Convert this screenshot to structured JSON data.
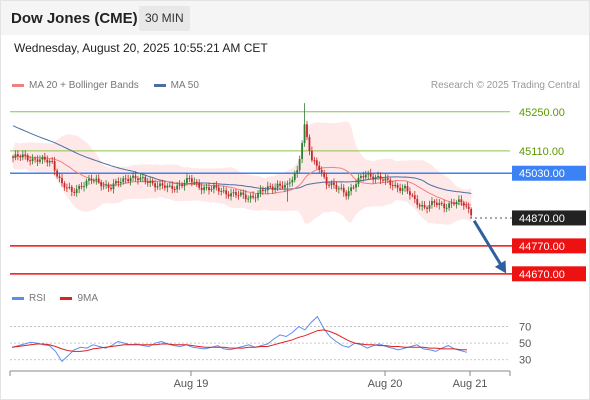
{
  "header": {
    "title": "Dow Jones (CME)",
    "interval": "30 MIN",
    "timestamp": "Wednesday, August 20, 2025 10:55:21 AM CET"
  },
  "legend": {
    "ma20_label": "MA 20 + Bollinger Bands",
    "ma50_label": "MA 50",
    "credit": "Research © 2025 Trading Central",
    "rsi_label": "RSI",
    "rsi_ma_label": "9MA"
  },
  "colors": {
    "ma20": "#f08080",
    "ma50": "#4a6fa5",
    "resistance": "#8bc34a",
    "pivot": "#3b82f6",
    "support": "#ee1111",
    "candle_up": "#2e7d32",
    "candle_down": "#c62828",
    "rsi": "#5b8def",
    "rsi_ma": "#dd2222",
    "arrow": "#2e5f9e"
  },
  "chart_data": {
    "type": "candlestick",
    "ylim": [
      44630,
      45310
    ],
    "levels": [
      {
        "value": 45250,
        "label": "45250.00",
        "kind": "resistance"
      },
      {
        "value": 45110,
        "label": "45110.00",
        "kind": "resistance"
      },
      {
        "value": 45030,
        "label": "45030.00",
        "kind": "pivot"
      },
      {
        "value": 44870,
        "label": "44870.00",
        "kind": "last"
      },
      {
        "value": 44770,
        "label": "44770.00",
        "kind": "support"
      },
      {
        "value": 44670,
        "label": "44670.00",
        "kind": "support"
      }
    ],
    "x_ticks": [
      "Aug 19",
      "Aug 20",
      "Aug 21"
    ],
    "price_path": [
      [
        0,
        45085
      ],
      [
        4,
        45090
      ],
      [
        8,
        45082
      ],
      [
        12,
        45075
      ],
      [
        16,
        45070
      ],
      [
        20,
        44990
      ],
      [
        24,
        44960
      ],
      [
        28,
        44990
      ],
      [
        32,
        45005
      ],
      [
        36,
        44995
      ],
      [
        40,
        44980
      ],
      [
        44,
        45000
      ],
      [
        48,
        45020
      ],
      [
        52,
        45005
      ],
      [
        56,
        45000
      ],
      [
        60,
        44985
      ],
      [
        64,
        44975
      ],
      [
        68,
        44990
      ],
      [
        72,
        45005
      ],
      [
        76,
        44985
      ],
      [
        80,
        44975
      ],
      [
        84,
        44970
      ],
      [
        88,
        44960
      ],
      [
        92,
        44950
      ],
      [
        96,
        44945
      ],
      [
        100,
        44955
      ],
      [
        104,
        44975
      ],
      [
        108,
        44990
      ],
      [
        112,
        44980
      ],
      [
        116,
        45040
      ],
      [
        119,
        45200
      ],
      [
        122,
        45070
      ],
      [
        125,
        45050
      ],
      [
        128,
        45000
      ],
      [
        132,
        44975
      ],
      [
        136,
        44960
      ],
      [
        140,
        44995
      ],
      [
        144,
        45025
      ],
      [
        148,
        45020
      ],
      [
        152,
        45000
      ],
      [
        156,
        44985
      ],
      [
        160,
        44975
      ],
      [
        164,
        44930
      ],
      [
        168,
        44910
      ],
      [
        172,
        44920
      ],
      [
        176,
        44915
      ],
      [
        180,
        44925
      ],
      [
        184,
        44920
      ],
      [
        187,
        44890
      ]
    ],
    "rsi_axis": {
      "ticks": [
        70,
        50,
        30
      ],
      "ylim": [
        20,
        90
      ]
    },
    "rsi": [
      45,
      47,
      49,
      51,
      50,
      48,
      47,
      40,
      28,
      35,
      42,
      45,
      44,
      48,
      46,
      44,
      47,
      52,
      50,
      48,
      49,
      47,
      46,
      50,
      52,
      49,
      47,
      46,
      48,
      45,
      44,
      43,
      45,
      47,
      43,
      42,
      44,
      46,
      48,
      45,
      47,
      49,
      55,
      60,
      58,
      63,
      70,
      66,
      75,
      82,
      68,
      58,
      52,
      47,
      45,
      50,
      48,
      44,
      47,
      49,
      46,
      44,
      42,
      44,
      46,
      48,
      43,
      42,
      40,
      44,
      47,
      43,
      41,
      39
    ],
    "rsi_ma": [
      45,
      46,
      47,
      48,
      49,
      49,
      48,
      46,
      43,
      41,
      40,
      40,
      41,
      43,
      44,
      45,
      46,
      47,
      48,
      48,
      48,
      48,
      48,
      48,
      49,
      49,
      48,
      48,
      48,
      47,
      46,
      45,
      45,
      45,
      45,
      44,
      44,
      44,
      45,
      45,
      46,
      46,
      48,
      50,
      52,
      54,
      57,
      59,
      62,
      65,
      66,
      64,
      61,
      57,
      53,
      50,
      49,
      48,
      48,
      47,
      47,
      46,
      46,
      45,
      45,
      45,
      45,
      44,
      44,
      43,
      43,
      43,
      42,
      42
    ]
  }
}
